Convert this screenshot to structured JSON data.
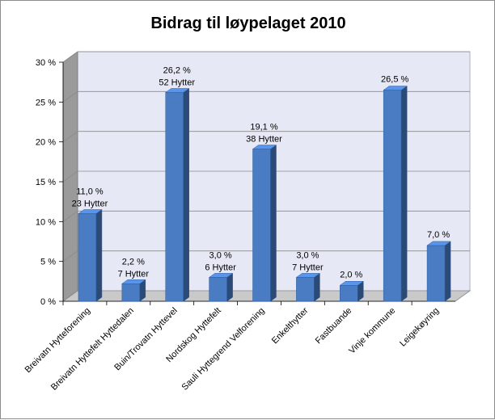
{
  "chart_data": {
    "type": "bar",
    "title": "Bidrag til løypelaget 2010",
    "xlabel": "",
    "ylabel": "",
    "ylim": [
      0,
      30
    ],
    "y_ticks": [
      "0 %",
      "5 %",
      "10 %",
      "15 %",
      "20 %",
      "25 %",
      "30 %"
    ],
    "grid": true,
    "legend": "none",
    "bar_color": "#4a7cc4",
    "categories": [
      "Breivatn Hytteforening",
      "Breivatn Hyttefelt Hyttedalen",
      "Buin/Trovatn Hyttevel",
      "Nordskog Hyttefelt",
      "Sauli Hyttegrend Velforening",
      "Enkelthytter",
      "Fastbuande",
      "Vinje kommune",
      "Leigekøyring"
    ],
    "values": [
      11.0,
      2.2,
      26.2,
      3.0,
      19.1,
      3.0,
      2.0,
      26.5,
      7.0
    ],
    "value_labels": [
      "11,0 %",
      "2,2 %",
      "26,2 %",
      "3,0 %",
      "19,1 %",
      "3,0 %",
      "2,0 %",
      "26,5 %",
      "7,0 %"
    ],
    "count_labels": [
      "23 Hytter",
      "7 Hytter",
      "52 Hytter",
      "6 Hytter",
      "38 Hytter",
      "7 Hytter",
      "",
      "",
      ""
    ]
  }
}
